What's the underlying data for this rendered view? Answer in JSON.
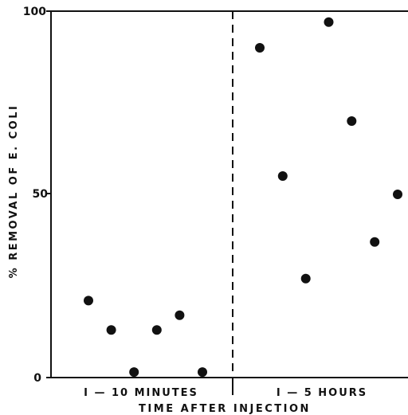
{
  "chart_data": {
    "type": "scatter",
    "xlabel": "TIME AFTER INJECTION",
    "ylabel": "% REMOVAL OF E. COLI",
    "ylim": [
      0,
      100
    ],
    "yticks": [
      "0",
      "50",
      "100"
    ],
    "groups": [
      {
        "label": "I — 10  MINUTES"
      },
      {
        "label": "I — 5  HOURS"
      }
    ],
    "divider": "dashed",
    "series": [
      {
        "group": "I — 10  MINUTES",
        "values": [
          21,
          13,
          1.5,
          13,
          17,
          1.5
        ]
      },
      {
        "group": "I — 5  HOURS",
        "values": [
          90,
          55,
          27,
          97,
          70,
          37,
          50
        ]
      }
    ],
    "colors": {
      "marker": "#111111",
      "axis": "#111111"
    }
  }
}
